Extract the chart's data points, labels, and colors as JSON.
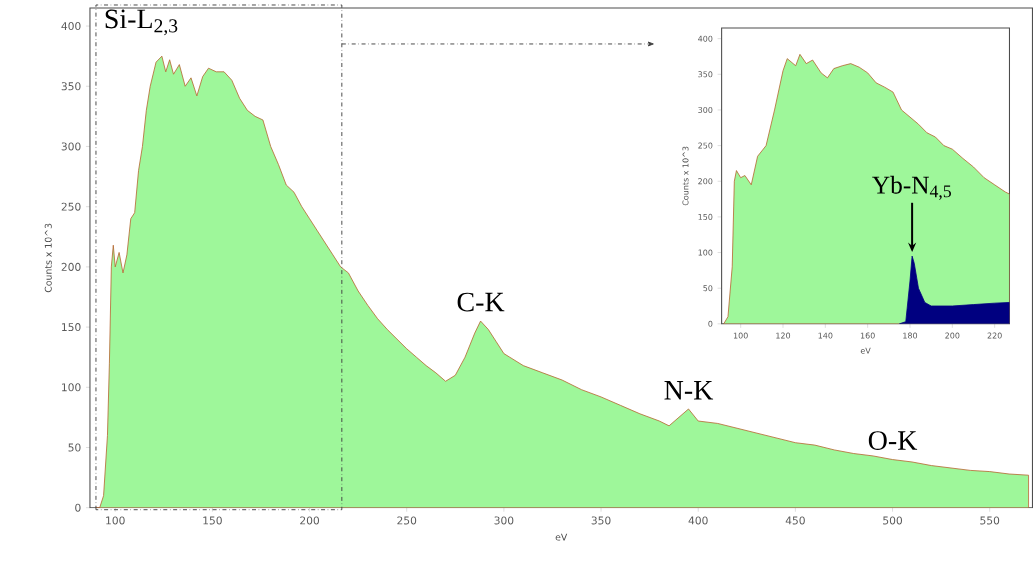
{
  "chart_data": [
    {
      "type": "area",
      "xlabel": "eV",
      "ylabel": "Counts x 10^3",
      "xlim": [
        87,
        572
      ],
      "ylim": [
        0,
        415
      ],
      "xticks": [
        100,
        150,
        200,
        250,
        300,
        350,
        400,
        450,
        500,
        550
      ],
      "yticks": [
        0,
        50,
        100,
        150,
        200,
        250,
        300,
        350,
        400
      ],
      "annotations": [
        "Si-L$_{2,3}$",
        {
          "text": "C-K",
          "x": 288,
          "y": 155
        },
        {
          "text": "N-K",
          "x": 395,
          "y": 82
        },
        {
          "text": "O-K",
          "x": 500,
          "y": 40
        }
      ],
      "series": [
        {
          "color": "#9ef79a",
          "x": [
            90,
            92,
            94,
            96,
            97,
            98,
            99,
            100,
            102,
            104,
            106,
            108,
            110,
            112,
            114,
            116,
            118,
            121,
            124,
            126,
            128,
            130,
            133,
            136,
            139,
            142,
            145,
            148,
            152,
            156,
            160,
            164,
            168,
            172,
            176,
            180,
            184,
            188,
            192,
            196,
            200,
            204,
            208,
            212,
            216,
            220,
            225,
            230,
            235,
            240,
            245,
            250,
            255,
            260,
            265,
            270,
            275,
            280,
            285,
            288,
            292,
            296,
            300,
            310,
            320,
            330,
            340,
            350,
            360,
            370,
            380,
            385,
            390,
            395,
            400,
            410,
            420,
            430,
            440,
            450,
            460,
            470,
            480,
            490,
            500,
            510,
            520,
            530,
            540,
            550,
            560,
            570
          ],
          "values": [
            0,
            0,
            10,
            60,
            120,
            200,
            218,
            200,
            212,
            195,
            210,
            240,
            245,
            280,
            300,
            330,
            350,
            370,
            375,
            362,
            372,
            360,
            368,
            350,
            357,
            342,
            358,
            365,
            362,
            362,
            355,
            340,
            330,
            325,
            322,
            300,
            285,
            268,
            262,
            250,
            240,
            230,
            220,
            210,
            200,
            195,
            180,
            168,
            157,
            148,
            140,
            132,
            125,
            118,
            112,
            105,
            110,
            125,
            145,
            155,
            148,
            138,
            128,
            118,
            112,
            106,
            98,
            92,
            85,
            78,
            72,
            68,
            75,
            82,
            72,
            70,
            66,
            62,
            58,
            54,
            52,
            48,
            45,
            43,
            40,
            38,
            35,
            33,
            31,
            30,
            28,
            27
          ]
        }
      ]
    },
    {
      "type": "area",
      "xlabel": "eV",
      "ylabel": "Counts x 10^3",
      "xlim": [
        91,
        227
      ],
      "ylim": [
        0,
        415
      ],
      "xticks": [
        100,
        120,
        140,
        160,
        180,
        200,
        220
      ],
      "yticks": [
        0,
        50,
        100,
        150,
        200,
        250,
        300,
        350,
        400
      ],
      "annotations": [
        {
          "text": "Yb-N$_{4,5}$",
          "x": 181,
          "y": 95
        }
      ],
      "series": [
        {
          "color": "#9ef79a",
          "x": [
            92,
            94,
            96,
            97,
            98,
            100,
            102,
            105,
            108,
            112,
            116,
            120,
            122,
            126,
            128,
            131,
            134,
            138,
            141,
            144,
            148,
            152,
            156,
            160,
            164,
            168,
            172,
            176,
            180,
            184,
            188,
            192,
            196,
            200,
            205,
            210,
            215,
            220,
            225,
            227
          ],
          "values": [
            0,
            10,
            80,
            200,
            215,
            205,
            208,
            195,
            235,
            250,
            300,
            355,
            372,
            362,
            378,
            365,
            370,
            352,
            345,
            358,
            362,
            365,
            360,
            352,
            338,
            332,
            325,
            300,
            290,
            280,
            268,
            262,
            250,
            245,
            232,
            220,
            205,
            195,
            185,
            182
          ]
        },
        {
          "color": "#000080",
          "x": [
            175,
            178,
            180,
            181,
            182,
            184,
            187,
            190,
            200,
            210,
            220,
            227
          ],
          "values": [
            0,
            3,
            60,
            95,
            85,
            50,
            30,
            25,
            25,
            27,
            29,
            30
          ]
        }
      ]
    }
  ]
}
